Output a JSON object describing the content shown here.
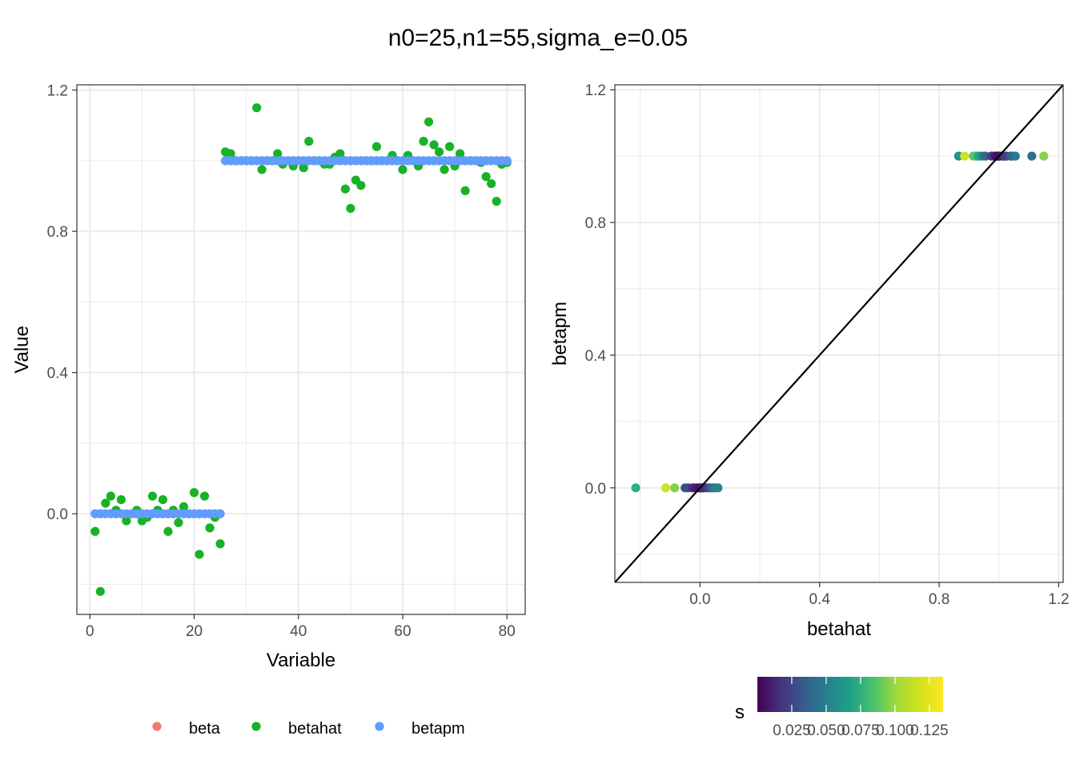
{
  "title": "n0=25,n1=55,sigma_e=0.05",
  "chart_data": [
    {
      "type": "scatter",
      "xlabel": "Variable",
      "ylabel": "Value",
      "xlim": [
        -2.5,
        83.5
      ],
      "ylim": [
        -0.285,
        1.215
      ],
      "x_ticks": [
        0,
        20,
        40,
        60,
        80
      ],
      "x_tick_labels": [
        "0",
        "20",
        "40",
        "60",
        "80"
      ],
      "y_ticks": [
        0.0,
        0.4,
        0.8,
        1.2
      ],
      "y_tick_labels": [
        "0.0",
        "0.4",
        "0.8",
        "1.2"
      ],
      "legend": {
        "position": "bottom",
        "entries": [
          {
            "label": "beta",
            "color": "#F8766D"
          },
          {
            "label": "betahat",
            "color": "#18B226"
          },
          {
            "label": "betapm",
            "color": "#619CFF"
          }
        ]
      },
      "x": [
        1,
        2,
        3,
        4,
        5,
        6,
        7,
        8,
        9,
        10,
        11,
        12,
        13,
        14,
        15,
        16,
        17,
        18,
        19,
        20,
        21,
        22,
        23,
        24,
        25,
        26,
        27,
        28,
        29,
        30,
        31,
        32,
        33,
        34,
        35,
        36,
        37,
        38,
        39,
        40,
        41,
        42,
        43,
        44,
        45,
        46,
        47,
        48,
        49,
        50,
        51,
        52,
        53,
        54,
        55,
        56,
        57,
        58,
        59,
        60,
        61,
        62,
        63,
        64,
        65,
        66,
        67,
        68,
        69,
        70,
        71,
        72,
        73,
        74,
        75,
        76,
        77,
        78,
        79,
        80
      ],
      "series": [
        {
          "name": "beta",
          "color": "#F8766D",
          "values": [
            0,
            0,
            0,
            0,
            0,
            0,
            0,
            0,
            0,
            0,
            0,
            0,
            0,
            0,
            0,
            0,
            0,
            0,
            0,
            0,
            0,
            0,
            0,
            0,
            0,
            1,
            1,
            1,
            1,
            1,
            1,
            1,
            1,
            1,
            1,
            1,
            1,
            1,
            1,
            1,
            1,
            1,
            1,
            1,
            1,
            1,
            1,
            1,
            1,
            1,
            1,
            1,
            1,
            1,
            1,
            1,
            1,
            1,
            1,
            1,
            1,
            1,
            1,
            1,
            1,
            1,
            1,
            1,
            1,
            1,
            1,
            1,
            1,
            1,
            1,
            1,
            1,
            1,
            1,
            1
          ]
        },
        {
          "name": "betahat",
          "color": "#18B226",
          "values": [
            -0.05,
            -0.22,
            0.03,
            0.05,
            0.01,
            0.04,
            -0.02,
            0.0,
            0.01,
            -0.02,
            -0.01,
            0.05,
            0.01,
            0.04,
            -0.05,
            0.01,
            -0.025,
            0.02,
            0.0,
            0.06,
            -0.115,
            0.05,
            -0.04,
            -0.01,
            -0.085,
            1.025,
            1.02,
            1.0,
            1.0,
            1.0,
            1.0,
            1.15,
            0.975,
            1.0,
            1.0,
            1.02,
            0.99,
            1.0,
            0.985,
            1.0,
            0.98,
            1.055,
            1.0,
            1.0,
            0.99,
            0.99,
            1.01,
            1.02,
            0.92,
            0.865,
            0.945,
            0.93,
            1.0,
            1.0,
            1.04,
            1.0,
            1.0,
            1.015,
            1.0,
            0.975,
            1.015,
            1.0,
            0.985,
            1.055,
            1.11,
            1.045,
            1.025,
            0.975,
            1.04,
            0.985,
            1.02,
            0.915,
            1.0,
            1.0,
            0.995,
            0.955,
            0.935,
            0.885,
            0.99,
            0.995
          ]
        },
        {
          "name": "betapm",
          "color": "#619CFF",
          "values": [
            0,
            0,
            0,
            0,
            0,
            0,
            0,
            0,
            0,
            0,
            0,
            0,
            0,
            0,
            0,
            0,
            0,
            0,
            0,
            0,
            0,
            0,
            0,
            0,
            0,
            1,
            1,
            1,
            1,
            1,
            1,
            1,
            1,
            1,
            1,
            1,
            1,
            1,
            1,
            1,
            1,
            1,
            1,
            1,
            1,
            1,
            1,
            1,
            1,
            1,
            1,
            1,
            1,
            1,
            1,
            1,
            1,
            1,
            1,
            1,
            1,
            1,
            1,
            1,
            1,
            1,
            1,
            1,
            1,
            1,
            1,
            1,
            1,
            1,
            1,
            1,
            1,
            1,
            1,
            1
          ]
        }
      ]
    },
    {
      "type": "scatter",
      "xlabel": "betahat",
      "ylabel": "betapm",
      "xlim": [
        -0.285,
        1.215
      ],
      "ylim": [
        -0.285,
        1.215
      ],
      "x_ticks": [
        0.0,
        0.4,
        0.8,
        1.2
      ],
      "x_tick_labels": [
        "0.0",
        "0.4",
        "0.8",
        "1.2"
      ],
      "y_ticks": [
        0.0,
        0.4,
        0.8,
        1.2
      ],
      "y_tick_labels": [
        "0.0",
        "0.4",
        "0.8",
        "1.2"
      ],
      "reference_line": {
        "type": "identity",
        "slope": 1,
        "intercept": 0,
        "color": "#000000"
      },
      "colorbar": {
        "title": "s",
        "range": [
          0.0,
          0.135
        ],
        "ticks": [
          0.025,
          0.05,
          0.075,
          0.1,
          0.125
        ],
        "tick_labels": [
          "0.025",
          "0.050",
          "0.075",
          "0.100",
          "0.125"
        ],
        "palette": "viridis",
        "position": "bottom"
      },
      "points": [
        {
          "x": -0.215,
          "y": 0,
          "s": 0.085
        },
        {
          "x": -0.115,
          "y": 0,
          "s": 0.125
        },
        {
          "x": -0.085,
          "y": 0,
          "s": 0.11
        },
        {
          "x": -0.05,
          "y": 0,
          "s": 0.035
        },
        {
          "x": -0.04,
          "y": 0,
          "s": 0.03
        },
        {
          "x": -0.025,
          "y": 0,
          "s": 0.02
        },
        {
          "x": -0.02,
          "y": 0,
          "s": 0.015
        },
        {
          "x": -0.01,
          "y": 0,
          "s": 0.01
        },
        {
          "x": 0.0,
          "y": 0,
          "s": 0.005
        },
        {
          "x": 0.0,
          "y": 0,
          "s": 0.005
        },
        {
          "x": 0.01,
          "y": 0,
          "s": 0.01
        },
        {
          "x": 0.01,
          "y": 0,
          "s": 0.012
        },
        {
          "x": 0.01,
          "y": 0,
          "s": 0.015
        },
        {
          "x": 0.02,
          "y": 0,
          "s": 0.02
        },
        {
          "x": 0.03,
          "y": 0,
          "s": 0.03
        },
        {
          "x": 0.04,
          "y": 0,
          "s": 0.04
        },
        {
          "x": 0.04,
          "y": 0,
          "s": 0.045
        },
        {
          "x": 0.05,
          "y": 0,
          "s": 0.055
        },
        {
          "x": 0.05,
          "y": 0,
          "s": 0.06
        },
        {
          "x": 0.06,
          "y": 0,
          "s": 0.06
        },
        {
          "x": 0.865,
          "y": 1,
          "s": 0.07
        },
        {
          "x": 0.885,
          "y": 1,
          "s": 0.125
        },
        {
          "x": 0.915,
          "y": 1,
          "s": 0.095
        },
        {
          "x": 0.92,
          "y": 1,
          "s": 0.1
        },
        {
          "x": 0.93,
          "y": 1,
          "s": 0.085
        },
        {
          "x": 0.935,
          "y": 1,
          "s": 0.08
        },
        {
          "x": 0.945,
          "y": 1,
          "s": 0.06
        },
        {
          "x": 0.955,
          "y": 1,
          "s": 0.045
        },
        {
          "x": 0.975,
          "y": 1,
          "s": 0.025
        },
        {
          "x": 0.985,
          "y": 1,
          "s": 0.015
        },
        {
          "x": 0.99,
          "y": 1,
          "s": 0.01
        },
        {
          "x": 0.995,
          "y": 1,
          "s": 0.005
        },
        {
          "x": 1.0,
          "y": 1,
          "s": 0.005
        },
        {
          "x": 1.0,
          "y": 1,
          "s": 0.005
        },
        {
          "x": 1.0,
          "y": 1,
          "s": 0.005
        },
        {
          "x": 1.01,
          "y": 1,
          "s": 0.01
        },
        {
          "x": 1.015,
          "y": 1,
          "s": 0.015
        },
        {
          "x": 1.02,
          "y": 1,
          "s": 0.02
        },
        {
          "x": 1.025,
          "y": 1,
          "s": 0.025
        },
        {
          "x": 1.04,
          "y": 1,
          "s": 0.04
        },
        {
          "x": 1.045,
          "y": 1,
          "s": 0.045
        },
        {
          "x": 1.055,
          "y": 1,
          "s": 0.055
        },
        {
          "x": 1.11,
          "y": 1,
          "s": 0.05
        },
        {
          "x": 1.15,
          "y": 1,
          "s": 0.11
        }
      ]
    }
  ]
}
